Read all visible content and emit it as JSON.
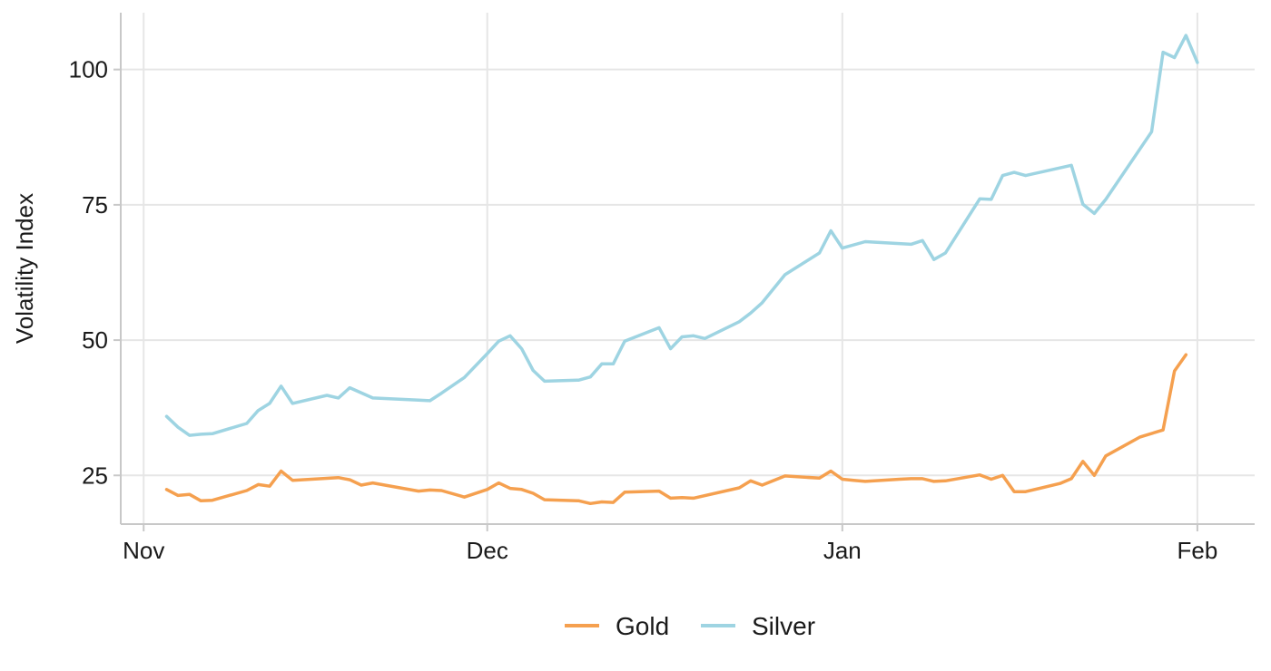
{
  "chart_data": {
    "type": "line",
    "title": "",
    "xlabel": "",
    "ylabel": "Volatility Index",
    "x_axis": {
      "type": "date",
      "range": [
        "2024-10-30",
        "2025-02-06"
      ],
      "ticks": [
        {
          "date": "2024-11-01",
          "label": "Nov"
        },
        {
          "date": "2024-12-01",
          "label": "Dec"
        },
        {
          "date": "2025-01-01",
          "label": "Jan"
        },
        {
          "date": "2025-02-01",
          "label": "Feb"
        }
      ]
    },
    "y_axis": {
      "range": [
        16.0,
        110.5
      ],
      "ticks": [
        25,
        50,
        75,
        100
      ]
    },
    "grid": true,
    "legend_position": "bottom",
    "series": [
      {
        "name": "Gold",
        "color": "#F5A04F",
        "points": [
          [
            "2024-11-03",
            22.4
          ],
          [
            "2024-11-04",
            21.3
          ],
          [
            "2024-11-05",
            21.5
          ],
          [
            "2024-11-06",
            20.3
          ],
          [
            "2024-11-07",
            20.4
          ],
          [
            "2024-11-10",
            22.2
          ],
          [
            "2024-11-11",
            23.3
          ],
          [
            "2024-11-12",
            23.0
          ],
          [
            "2024-11-13",
            25.8
          ],
          [
            "2024-11-14",
            24.1
          ],
          [
            "2024-11-18",
            24.6
          ],
          [
            "2024-11-19",
            24.2
          ],
          [
            "2024-11-20",
            23.2
          ],
          [
            "2024-11-21",
            23.6
          ],
          [
            "2024-11-25",
            22.1
          ],
          [
            "2024-11-26",
            22.3
          ],
          [
            "2024-11-27",
            22.2
          ],
          [
            "2024-11-29",
            21.0
          ],
          [
            "2024-12-01",
            22.4
          ],
          [
            "2024-12-02",
            23.6
          ],
          [
            "2024-12-03",
            22.6
          ],
          [
            "2024-12-04",
            22.4
          ],
          [
            "2024-12-05",
            21.7
          ],
          [
            "2024-12-06",
            20.5
          ],
          [
            "2024-12-09",
            20.3
          ],
          [
            "2024-12-10",
            19.8
          ],
          [
            "2024-12-11",
            20.1
          ],
          [
            "2024-12-12",
            20.0
          ],
          [
            "2024-12-13",
            21.9
          ],
          [
            "2024-12-16",
            22.1
          ],
          [
            "2024-12-17",
            20.8
          ],
          [
            "2024-12-18",
            20.9
          ],
          [
            "2024-12-19",
            20.8
          ],
          [
            "2024-12-23",
            22.7
          ],
          [
            "2024-12-24",
            24.0
          ],
          [
            "2024-12-25",
            23.2
          ],
          [
            "2024-12-27",
            24.9
          ],
          [
            "2024-12-30",
            24.5
          ],
          [
            "2024-12-31",
            25.8
          ],
          [
            "2025-01-01",
            24.3
          ],
          [
            "2025-01-02",
            24.1
          ],
          [
            "2025-01-03",
            23.9
          ],
          [
            "2025-01-06",
            24.3
          ],
          [
            "2025-01-07",
            24.4
          ],
          [
            "2025-01-08",
            24.4
          ],
          [
            "2025-01-09",
            23.9
          ],
          [
            "2025-01-10",
            24.0
          ],
          [
            "2025-01-13",
            25.1
          ],
          [
            "2025-01-14",
            24.3
          ],
          [
            "2025-01-15",
            25.0
          ],
          [
            "2025-01-16",
            22.0
          ],
          [
            "2025-01-17",
            22.0
          ],
          [
            "2025-01-20",
            23.5
          ],
          [
            "2025-01-21",
            24.4
          ],
          [
            "2025-01-22",
            27.6
          ],
          [
            "2025-01-23",
            25.0
          ],
          [
            "2025-01-24",
            28.6
          ],
          [
            "2025-01-27",
            32.1
          ],
          [
            "2025-01-29",
            33.4
          ],
          [
            "2025-01-30",
            44.3
          ],
          [
            "2025-01-31",
            47.3
          ]
        ]
      },
      {
        "name": "Silver",
        "color": "#9ED4E2",
        "points": [
          [
            "2024-11-03",
            35.9
          ],
          [
            "2024-11-04",
            33.9
          ],
          [
            "2024-11-05",
            32.4
          ],
          [
            "2024-11-06",
            32.6
          ],
          [
            "2024-11-07",
            32.7
          ],
          [
            "2024-11-10",
            34.6
          ],
          [
            "2024-11-11",
            37.0
          ],
          [
            "2024-11-12",
            38.3
          ],
          [
            "2024-11-13",
            41.5
          ],
          [
            "2024-11-14",
            38.3
          ],
          [
            "2024-11-17",
            39.8
          ],
          [
            "2024-11-18",
            39.3
          ],
          [
            "2024-11-19",
            41.2
          ],
          [
            "2024-11-21",
            39.3
          ],
          [
            "2024-11-25",
            38.9
          ],
          [
            "2024-11-26",
            38.8
          ],
          [
            "2024-11-27",
            40.2
          ],
          [
            "2024-11-29",
            43.1
          ],
          [
            "2024-12-01",
            47.5
          ],
          [
            "2024-12-02",
            49.8
          ],
          [
            "2024-12-03",
            50.8
          ],
          [
            "2024-12-04",
            48.4
          ],
          [
            "2024-12-05",
            44.4
          ],
          [
            "2024-12-06",
            42.4
          ],
          [
            "2024-12-09",
            42.6
          ],
          [
            "2024-12-10",
            43.2
          ],
          [
            "2024-12-11",
            45.6
          ],
          [
            "2024-12-12",
            45.6
          ],
          [
            "2024-12-13",
            49.8
          ],
          [
            "2024-12-16",
            52.3
          ],
          [
            "2024-12-17",
            48.4
          ],
          [
            "2024-12-18",
            50.6
          ],
          [
            "2024-12-19",
            50.8
          ],
          [
            "2024-12-20",
            50.3
          ],
          [
            "2024-12-23",
            53.4
          ],
          [
            "2024-12-24",
            55.0
          ],
          [
            "2024-12-25",
            56.9
          ],
          [
            "2024-12-27",
            62.1
          ],
          [
            "2024-12-30",
            66.1
          ],
          [
            "2024-12-31",
            70.2
          ],
          [
            "2025-01-01",
            67.0
          ],
          [
            "2025-01-03",
            68.2
          ],
          [
            "2025-01-07",
            67.7
          ],
          [
            "2025-01-08",
            68.4
          ],
          [
            "2025-01-09",
            64.9
          ],
          [
            "2025-01-10",
            66.1
          ],
          [
            "2025-01-13",
            76.1
          ],
          [
            "2025-01-14",
            76.0
          ],
          [
            "2025-01-15",
            80.4
          ],
          [
            "2025-01-16",
            81.0
          ],
          [
            "2025-01-17",
            80.4
          ],
          [
            "2025-01-21",
            82.3
          ],
          [
            "2025-01-22",
            75.1
          ],
          [
            "2025-01-23",
            73.4
          ],
          [
            "2025-01-24",
            76.0
          ],
          [
            "2025-01-28",
            88.5
          ],
          [
            "2025-01-29",
            103.2
          ],
          [
            "2025-01-30",
            102.2
          ],
          [
            "2025-01-31",
            106.3
          ],
          [
            "2025-02-01",
            101.3
          ]
        ]
      }
    ]
  }
}
